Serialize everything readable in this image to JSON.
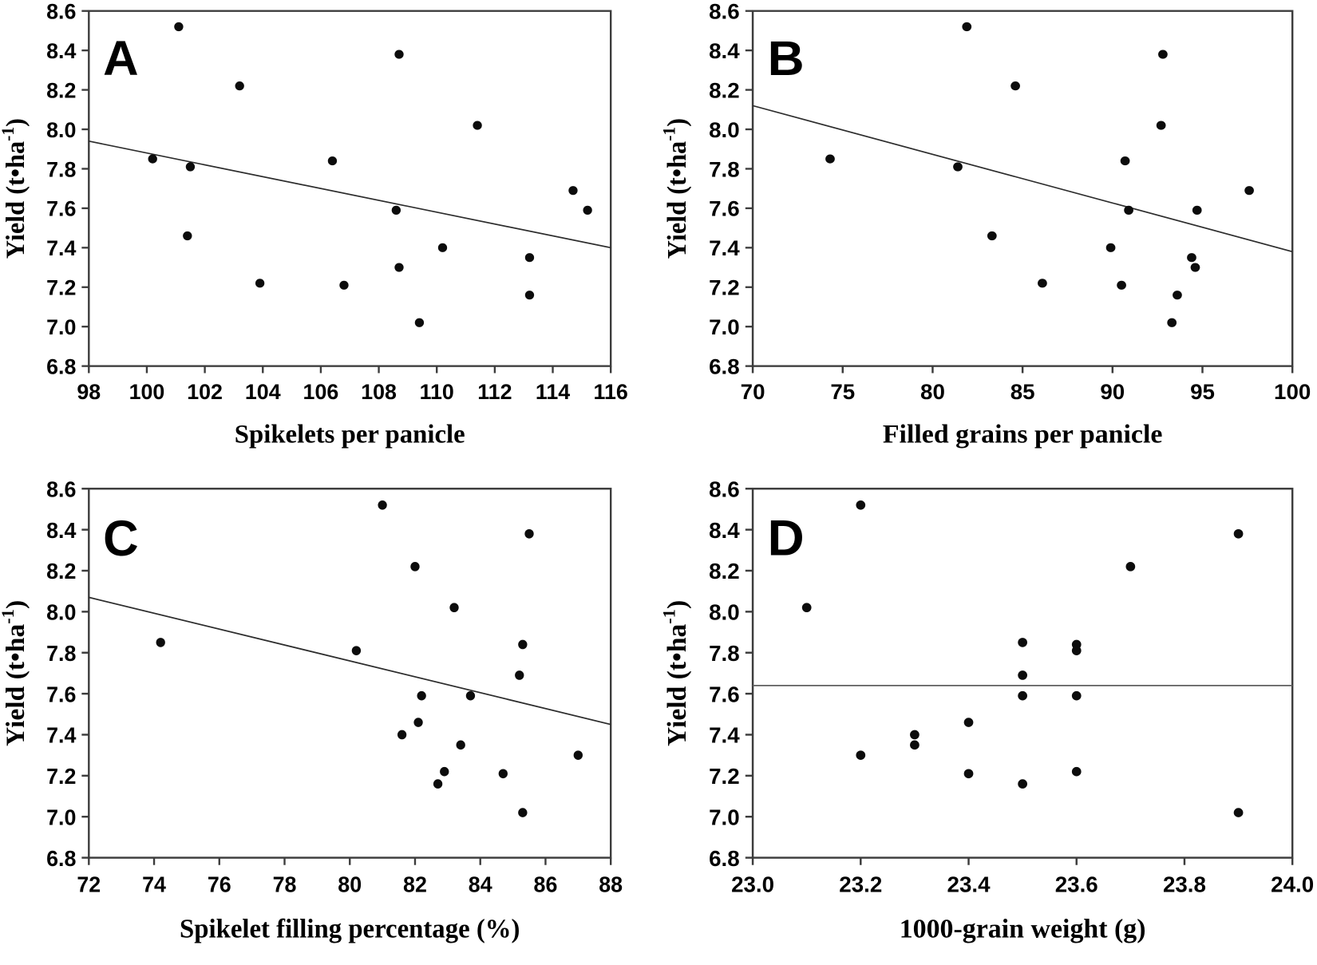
{
  "figure": {
    "ylabel_base": "Yield (t•ha",
    "ylabel_sup": "-1",
    "ylabel_end": ")",
    "ylabel_full": "Yield (t•ha-1)",
    "yticks": [
      6.8,
      7.0,
      7.2,
      7.4,
      7.6,
      7.8,
      8.0,
      8.2,
      8.4,
      8.6
    ],
    "ytick_decimals": 1,
    "colors": {
      "marker": "#0c0c0c",
      "axis": "#3c3c3c",
      "text": "#000000",
      "background": "#ffffff"
    }
  },
  "chart_data": [
    {
      "type": "scatter",
      "panel_label": "A",
      "xlabel": "Spikelets per panicle",
      "ylabel": "Yield (t•ha-1)",
      "xlim": [
        98,
        116
      ],
      "ylim": [
        6.8,
        8.6
      ],
      "xticks": [
        98,
        100,
        102,
        104,
        106,
        108,
        110,
        112,
        114,
        116
      ],
      "xtick_decimals": 0,
      "legend": null,
      "grid": false,
      "points": [
        [
          101.1,
          8.52
        ],
        [
          108.7,
          8.38
        ],
        [
          103.2,
          8.22
        ],
        [
          111.4,
          8.02
        ],
        [
          100.2,
          7.85
        ],
        [
          106.4,
          7.84
        ],
        [
          101.5,
          7.81
        ],
        [
          114.7,
          7.69
        ],
        [
          108.6,
          7.59
        ],
        [
          115.2,
          7.59
        ],
        [
          101.4,
          7.46
        ],
        [
          110.2,
          7.4
        ],
        [
          113.2,
          7.35
        ],
        [
          108.7,
          7.3
        ],
        [
          103.9,
          7.22
        ],
        [
          106.8,
          7.21
        ],
        [
          113.2,
          7.16
        ],
        [
          109.4,
          7.02
        ]
      ],
      "trendline": {
        "x1": 98,
        "y1": 7.94,
        "x2": 116,
        "y2": 7.4,
        "color": "#2b2b2b"
      }
    },
    {
      "type": "scatter",
      "panel_label": "B",
      "xlabel": "Filled grains per panicle",
      "ylabel": "Yield (t•ha-1)",
      "xlim": [
        70,
        100
      ],
      "ylim": [
        6.8,
        8.6
      ],
      "xticks": [
        70,
        75,
        80,
        85,
        90,
        95,
        100
      ],
      "xtick_decimals": 0,
      "legend": null,
      "grid": false,
      "points": [
        [
          81.9,
          8.52
        ],
        [
          92.8,
          8.38
        ],
        [
          84.6,
          8.22
        ],
        [
          92.7,
          8.02
        ],
        [
          74.3,
          7.85
        ],
        [
          90.7,
          7.84
        ],
        [
          81.4,
          7.81
        ],
        [
          97.6,
          7.69
        ],
        [
          90.9,
          7.59
        ],
        [
          94.7,
          7.59
        ],
        [
          83.3,
          7.46
        ],
        [
          89.9,
          7.4
        ],
        [
          94.4,
          7.35
        ],
        [
          94.6,
          7.3
        ],
        [
          86.1,
          7.22
        ],
        [
          90.5,
          7.21
        ],
        [
          93.6,
          7.16
        ],
        [
          93.3,
          7.02
        ]
      ],
      "trendline": {
        "x1": 70,
        "y1": 8.12,
        "x2": 100,
        "y2": 7.38,
        "color": "#2b2b2b"
      }
    },
    {
      "type": "scatter",
      "panel_label": "C",
      "xlabel": "Spikelet filling percentage (%)",
      "ylabel": "Yield (t•ha-1)",
      "xlim": [
        72,
        88
      ],
      "ylim": [
        6.8,
        8.6
      ],
      "xticks": [
        72,
        74,
        76,
        78,
        80,
        82,
        84,
        86,
        88
      ],
      "xtick_decimals": 0,
      "legend": null,
      "grid": false,
      "points": [
        [
          81.0,
          8.52
        ],
        [
          85.5,
          8.38
        ],
        [
          82.0,
          8.22
        ],
        [
          83.2,
          8.02
        ],
        [
          74.2,
          7.85
        ],
        [
          85.3,
          7.84
        ],
        [
          80.2,
          7.81
        ],
        [
          85.2,
          7.69
        ],
        [
          83.7,
          7.59
        ],
        [
          82.2,
          7.59
        ],
        [
          82.1,
          7.46
        ],
        [
          81.6,
          7.4
        ],
        [
          83.4,
          7.35
        ],
        [
          87.0,
          7.3
        ],
        [
          82.9,
          7.22
        ],
        [
          84.7,
          7.21
        ],
        [
          82.7,
          7.16
        ],
        [
          85.3,
          7.02
        ]
      ],
      "trendline": {
        "x1": 72,
        "y1": 8.07,
        "x2": 88,
        "y2": 7.45,
        "color": "#2b2b2b"
      }
    },
    {
      "type": "scatter",
      "panel_label": "D",
      "xlabel": "1000-grain weight (g)",
      "ylabel": "Yield (t•ha-1)",
      "xlim": [
        23.0,
        24.0
      ],
      "ylim": [
        6.8,
        8.6
      ],
      "xticks": [
        23.0,
        23.2,
        23.4,
        23.6,
        23.8,
        24.0
      ],
      "xtick_decimals": 1,
      "legend": null,
      "grid": false,
      "points": [
        [
          23.2,
          8.52
        ],
        [
          23.9,
          8.38
        ],
        [
          23.7,
          8.22
        ],
        [
          23.1,
          8.02
        ],
        [
          23.5,
          7.85
        ],
        [
          23.6,
          7.84
        ],
        [
          23.6,
          7.81
        ],
        [
          23.5,
          7.69
        ],
        [
          23.5,
          7.59
        ],
        [
          23.6,
          7.59
        ],
        [
          23.4,
          7.46
        ],
        [
          23.3,
          7.4
        ],
        [
          23.3,
          7.35
        ],
        [
          23.2,
          7.3
        ],
        [
          23.6,
          7.22
        ],
        [
          23.4,
          7.21
        ],
        [
          23.5,
          7.16
        ],
        [
          23.9,
          7.02
        ]
      ],
      "trendline": {
        "x1": 23.0,
        "y1": 7.64,
        "x2": 24.0,
        "y2": 7.64,
        "color": "#5f5f5f"
      }
    }
  ]
}
